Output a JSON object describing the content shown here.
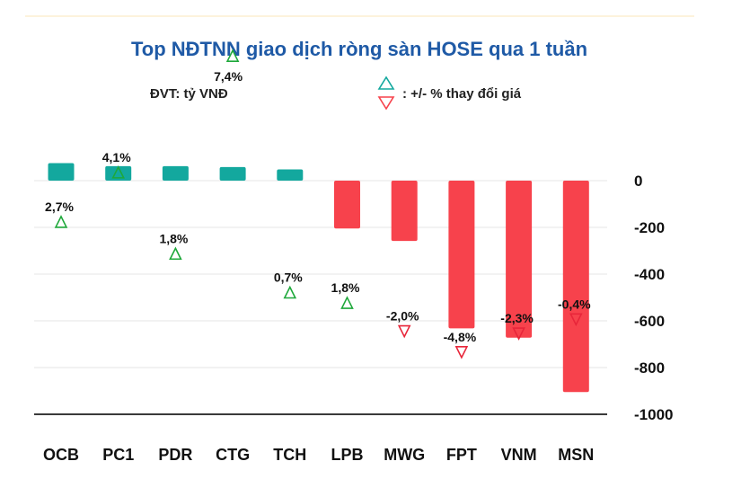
{
  "chart_data": {
    "type": "bar",
    "title": "Top NĐTNN giao dịch ròng sàn HOSE qua 1 tuần",
    "unit_label": "ĐVT: tỷ VNĐ",
    "legend_label": ": +/- % thay đổi giá",
    "categories": [
      "OCB",
      "PC1",
      "PDR",
      "CTG",
      "TCH",
      "LPB",
      "MWG",
      "FPT",
      "VNM",
      "MSN"
    ],
    "values": [
      75,
      62,
      62,
      58,
      48,
      -205,
      -258,
      -632,
      -672,
      -905
    ],
    "price_change": [
      2.7,
      4.1,
      1.8,
      7.4,
      0.7,
      1.8,
      -2.0,
      -4.8,
      -2.3,
      -0.4
    ],
    "price_change_labels": [
      "2,7%",
      "4,1%",
      "1,8%",
      "7,4%",
      "0,7%",
      "1,8%",
      "-2,0%",
      "-4,8%",
      "-2,3%",
      "-0,4%"
    ],
    "ylim": [
      -1000,
      100
    ],
    "yticks": [
      0,
      -200,
      -400,
      -600,
      -800,
      -1000
    ],
    "ytick_labels": [
      "0",
      "-200",
      "-400",
      "-600",
      "-800",
      "-1000"
    ],
    "grid": true,
    "y_axis_position": "right",
    "colors": {
      "positive": "#13a89e",
      "negative": "#f7424c",
      "up_marker": "#1ea83a",
      "down_marker": "#e8263a",
      "title": "#1f5aa6"
    }
  }
}
